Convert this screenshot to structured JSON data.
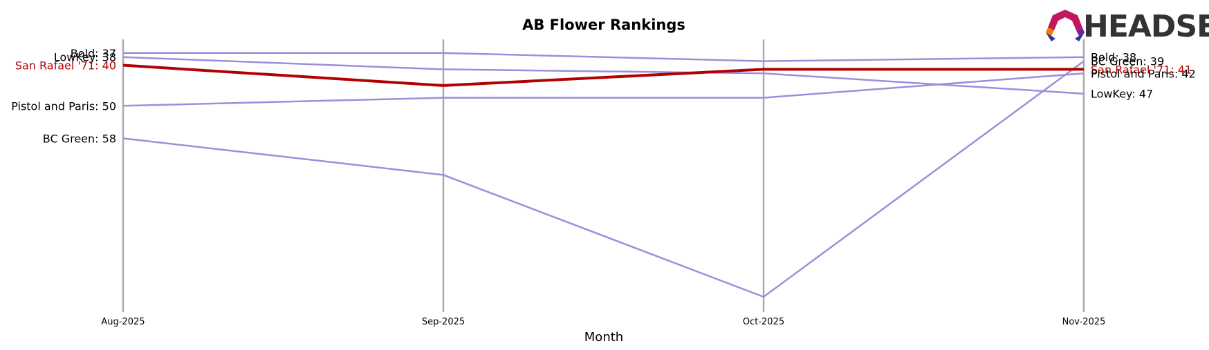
{
  "chart_data": {
    "type": "line",
    "title": "AB Flower Rankings",
    "xlabel": "Month",
    "ylabel": "",
    "categories": [
      "Aug-2025",
      "Sep-2025",
      "Oct-2025",
      "Nov-2025"
    ],
    "y_inverted": true,
    "ylim": [
      70,
      36
    ],
    "grid": "vertical lines at each month",
    "highlight_color": "#b30000",
    "series_color": "#9b8fdc",
    "series": [
      {
        "name": "Bold",
        "values": [
          37,
          37,
          39,
          38
        ],
        "highlight": false
      },
      {
        "name": "LowKey",
        "values": [
          38,
          41,
          42,
          47
        ],
        "highlight": false
      },
      {
        "name": "San Rafael '71",
        "values": [
          40,
          45,
          41,
          41
        ],
        "highlight": true
      },
      {
        "name": "Pistol and Paris",
        "values": [
          50,
          48,
          48,
          42
        ],
        "highlight": false
      },
      {
        "name": "BC Green",
        "values": [
          58,
          67,
          97,
          39
        ],
        "highlight": false
      }
    ]
  },
  "logo": {
    "text": "HEADSET"
  }
}
